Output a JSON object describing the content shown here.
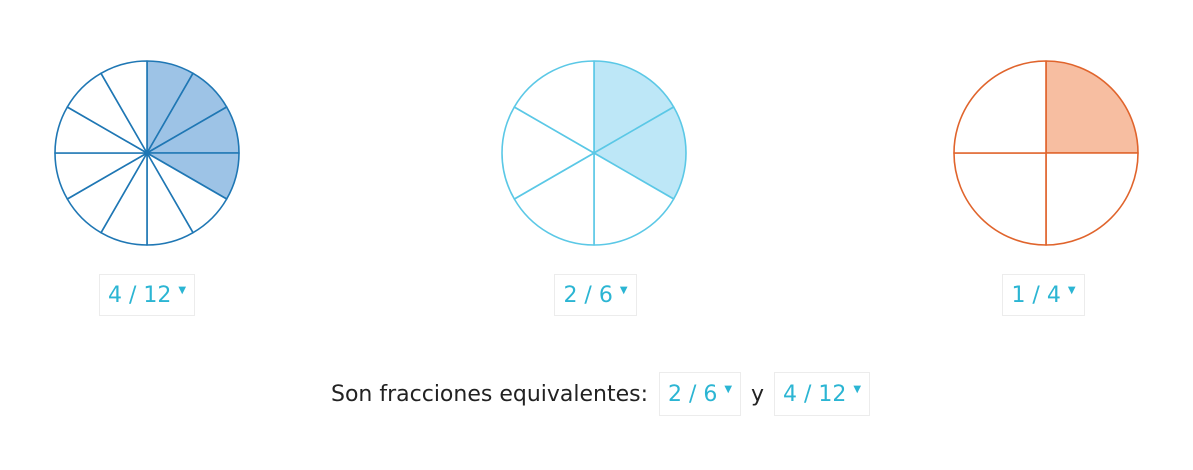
{
  "pies": [
    {
      "numerator": 4,
      "denominator": 12,
      "stroke": "#1f77b4",
      "fill": "#9dc3e6",
      "selected_label": "4 / 12"
    },
    {
      "numerator": 2,
      "denominator": 6,
      "stroke": "#5bc8e6",
      "fill": "#bde7f7",
      "selected_label": "2 / 6"
    },
    {
      "numerator": 1,
      "denominator": 4,
      "stroke": "#e0642c",
      "fill": "#f7bea1",
      "selected_label": "1 / 4"
    }
  ],
  "caret_icon": "caret-down-icon",
  "answer": {
    "prompt": "Son fracciones equivalentes:",
    "first": "2 / 6",
    "conjunction": "y",
    "second": "4 / 12"
  },
  "accent_color": "#2bb5d3"
}
